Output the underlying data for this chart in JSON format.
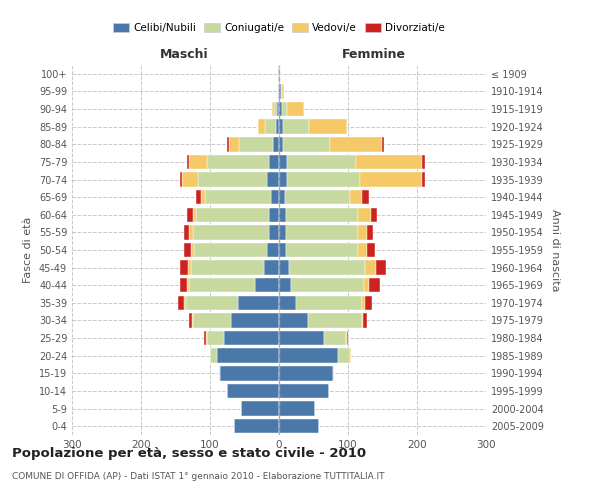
{
  "age_groups": [
    "100+",
    "95-99",
    "90-94",
    "85-89",
    "80-84",
    "75-79",
    "70-74",
    "65-69",
    "60-64",
    "55-59",
    "50-54",
    "45-49",
    "40-44",
    "35-39",
    "30-34",
    "25-29",
    "20-24",
    "15-19",
    "10-14",
    "5-9",
    "0-4"
  ],
  "birth_years": [
    "≤ 1909",
    "1910-1914",
    "1915-1919",
    "1920-1924",
    "1925-1929",
    "1930-1934",
    "1935-1939",
    "1940-1944",
    "1945-1949",
    "1950-1954",
    "1955-1959",
    "1960-1964",
    "1965-1969",
    "1970-1974",
    "1975-1979",
    "1980-1984",
    "1985-1989",
    "1990-1994",
    "1995-1999",
    "2000-2004",
    "2005-2009"
  ],
  "male": {
    "celibi": [
      2,
      2,
      3,
      5,
      8,
      15,
      18,
      12,
      15,
      15,
      18,
      22,
      35,
      60,
      70,
      80,
      90,
      85,
      75,
      55,
      65
    ],
    "coniugati": [
      0,
      0,
      4,
      15,
      50,
      90,
      100,
      95,
      105,
      110,
      105,
      105,
      95,
      75,
      55,
      25,
      10,
      2,
      0,
      0,
      0
    ],
    "vedovi": [
      0,
      0,
      3,
      10,
      15,
      25,
      22,
      6,
      5,
      5,
      5,
      5,
      3,
      2,
      1,
      1,
      0,
      0,
      0,
      0,
      0
    ],
    "divorziati": [
      0,
      0,
      0,
      0,
      3,
      4,
      4,
      8,
      8,
      8,
      10,
      12,
      10,
      10,
      4,
      2,
      0,
      0,
      0,
      0,
      0
    ]
  },
  "female": {
    "nubili": [
      2,
      3,
      5,
      6,
      6,
      12,
      12,
      8,
      10,
      10,
      10,
      15,
      18,
      25,
      42,
      65,
      85,
      78,
      72,
      52,
      58
    ],
    "coniugate": [
      0,
      1,
      6,
      38,
      68,
      100,
      105,
      95,
      105,
      105,
      105,
      110,
      105,
      95,
      78,
      32,
      18,
      2,
      0,
      0,
      0
    ],
    "vedove": [
      0,
      3,
      25,
      55,
      75,
      95,
      90,
      18,
      18,
      12,
      12,
      15,
      8,
      5,
      2,
      1,
      1,
      0,
      0,
      0,
      0
    ],
    "divorziate": [
      0,
      0,
      0,
      0,
      3,
      4,
      4,
      9,
      9,
      9,
      12,
      15,
      15,
      10,
      6,
      2,
      1,
      0,
      0,
      0,
      0
    ]
  },
  "colors": {
    "celibi": "#4a78aa",
    "coniugati": "#c8d9a0",
    "vedovi": "#f5c868",
    "divorziati": "#cc2222"
  },
  "title": "Popolazione per età, sesso e stato civile - 2010",
  "subtitle": "COMUNE DI OFFIDA (AP) - Dati ISTAT 1° gennaio 2010 - Elaborazione TUTTITALIA.IT",
  "xlabel_left": "Maschi",
  "xlabel_right": "Femmine",
  "ylabel_left": "Fasce di età",
  "ylabel_right": "Anni di nascita",
  "xlim": 300,
  "background_color": "#ffffff",
  "legend_labels": [
    "Celibi/Nubili",
    "Coniugati/e",
    "Vedovi/e",
    "Divorziati/e"
  ]
}
